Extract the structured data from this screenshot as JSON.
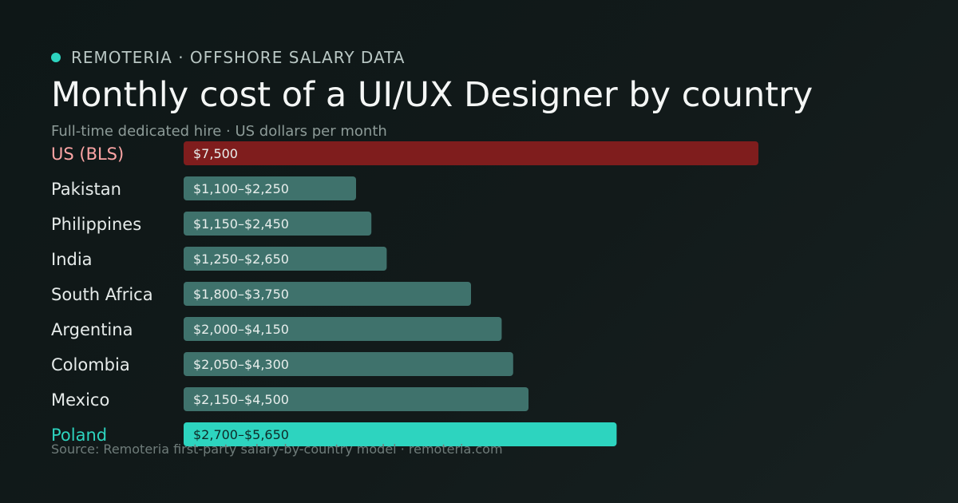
{
  "header": {
    "brand": "REMOTERIA · OFFSHORE SALARY DATA",
    "title": "Monthly cost of a UI/UX Designer by country",
    "subtitle": "Full-time dedicated hire · US dollars per month"
  },
  "colors": {
    "accent": "#2dd4bf",
    "us_bar": "#7f1d1d",
    "us_label": "#fca5a5",
    "bar": "#3f726c",
    "bar_text": "#e8eeec",
    "label": "#e6ebea",
    "highlight_text": "#0e2a27"
  },
  "chart_data": {
    "type": "bar",
    "orientation": "horizontal",
    "unit": "USD per month",
    "categories": [
      "US (BLS)",
      "Pakistan",
      "Philippines",
      "India",
      "South Africa",
      "Argentina",
      "Colombia",
      "Mexico",
      "Poland"
    ],
    "low": [
      7500,
      1100,
      1150,
      1250,
      1800,
      2000,
      2050,
      2150,
      2700
    ],
    "high": [
      7500,
      2250,
      2450,
      2650,
      3750,
      4150,
      4300,
      4500,
      5650
    ],
    "value_labels": [
      "$7,500",
      "$1,100–$2,250",
      "$1,150–$2,450",
      "$1,250–$2,650",
      "$1,800–$3,750",
      "$2,000–$4,150",
      "$2,050–$4,300",
      "$2,150–$4,500",
      "$2,700–$5,650"
    ],
    "highlight": {
      "baseline": "US (BLS)",
      "featured": "Poland"
    },
    "grid": false
  },
  "footer": {
    "source": "Source: Remoteria first-party salary-by-country model · remoteria.com"
  }
}
